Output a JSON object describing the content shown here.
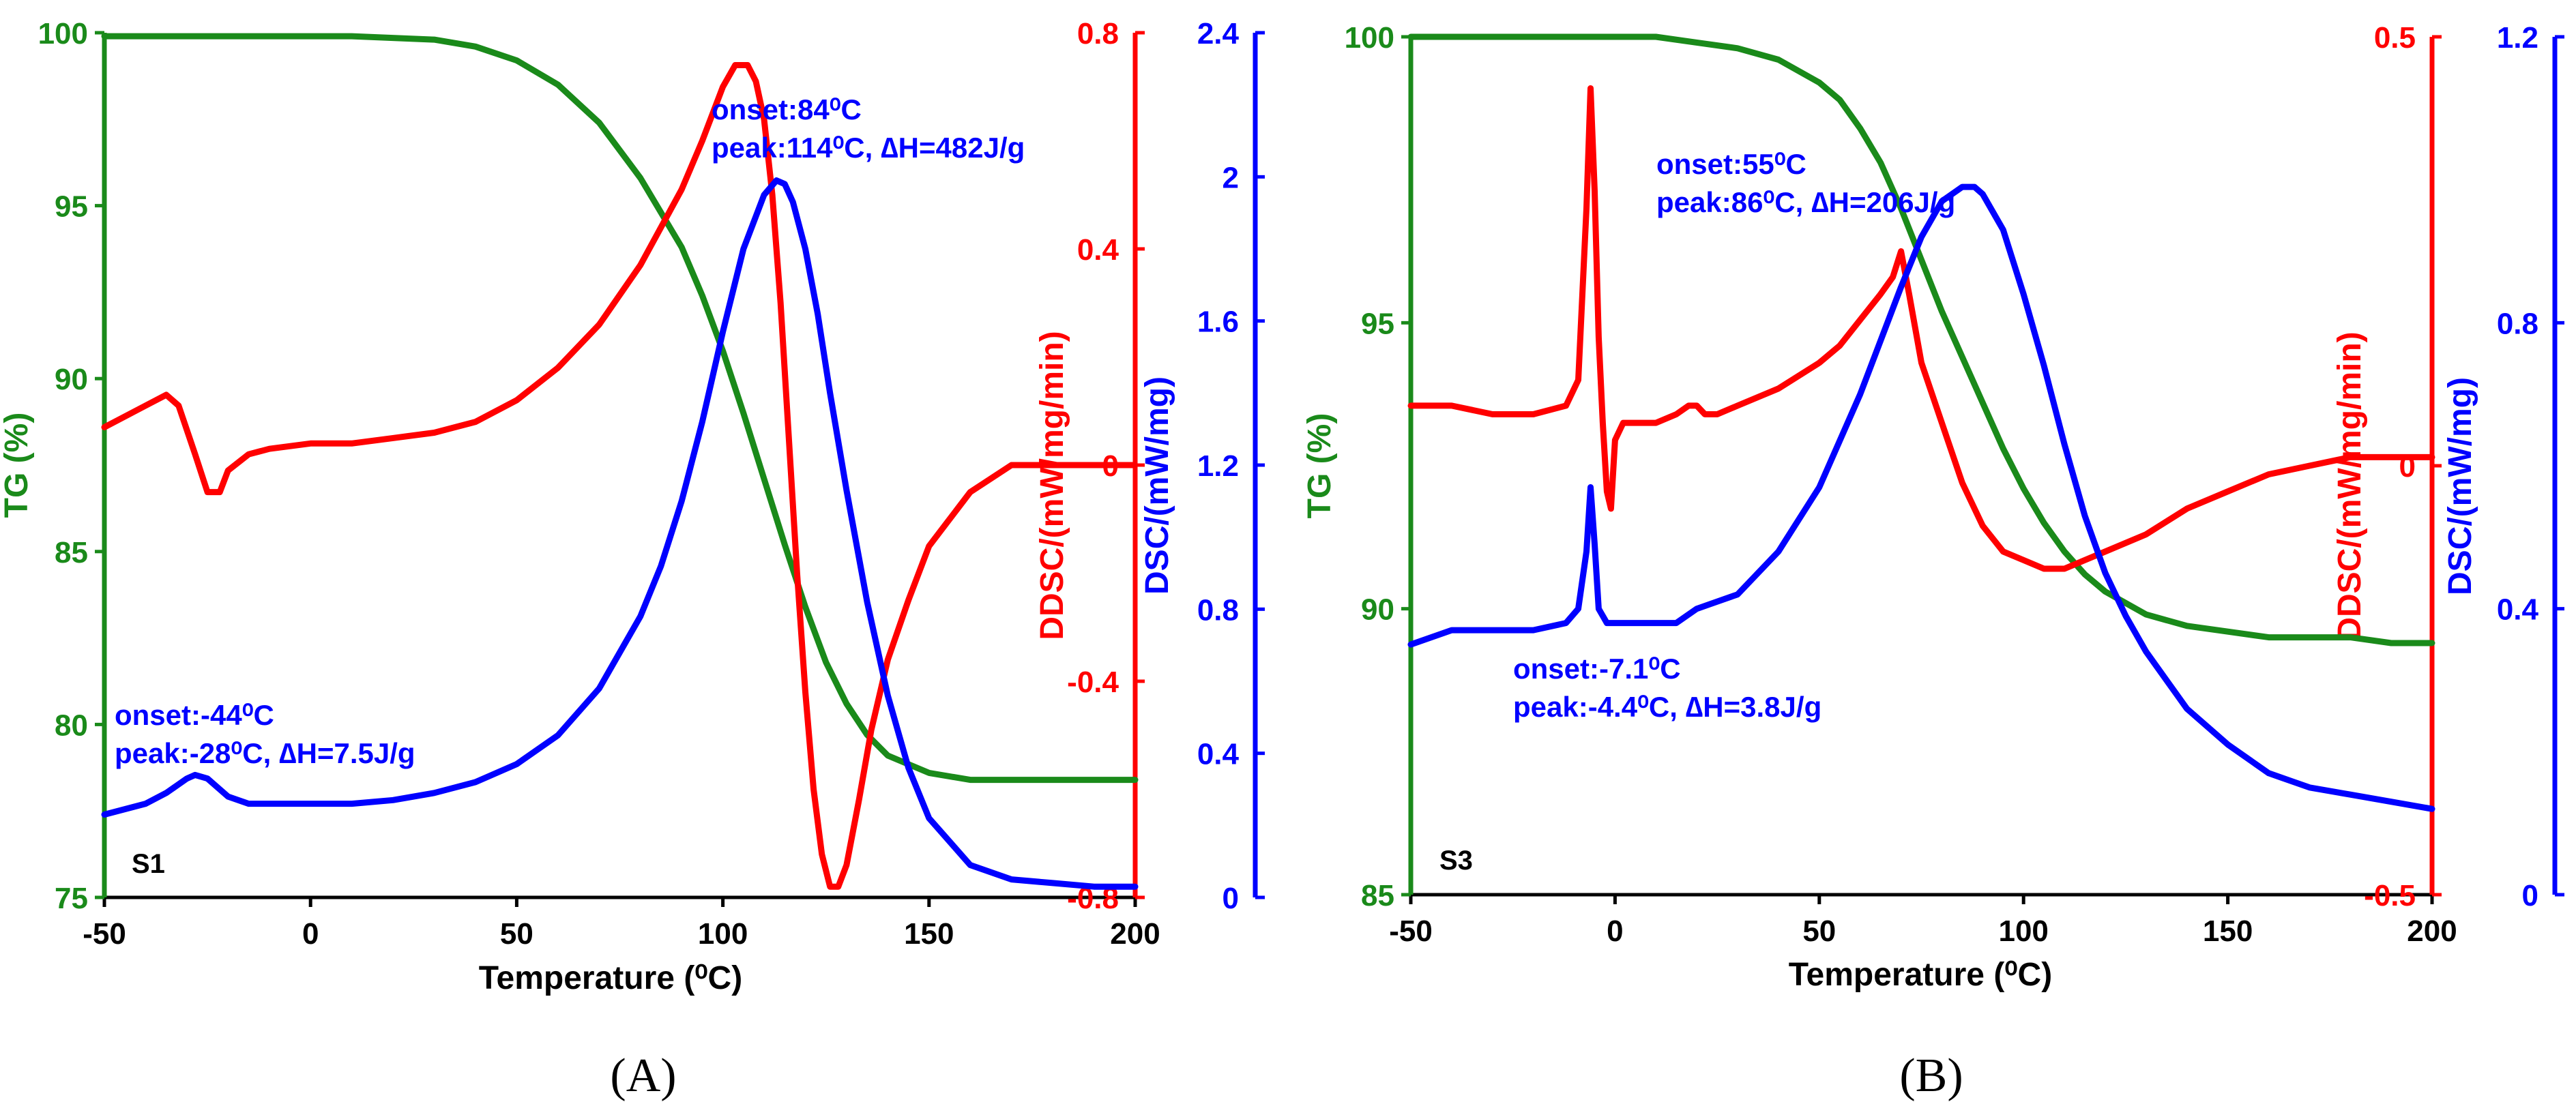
{
  "chart_data": [
    {
      "id": "A",
      "type": "line",
      "panel_label": "(A)",
      "sample_label": "S1",
      "xlabel": "Temperature (⁰C)",
      "xlim": [
        -50,
        200
      ],
      "xticks": [
        "-50",
        "0",
        "50",
        "100",
        "150",
        "200"
      ],
      "axes": [
        {
          "name": "TG (%)",
          "side": "left",
          "color": "#1a8a1a",
          "ylim": [
            75,
            100
          ],
          "ticks": [
            "75",
            "80",
            "85",
            "90",
            "95",
            "100"
          ]
        },
        {
          "name": "DDSC/(mW/mg/min)",
          "side": "right",
          "color": "#ff0000",
          "ylim": [
            -0.8,
            0.8
          ],
          "ticks": [
            "-0.8",
            "-0.4",
            "0",
            "0.4",
            "0.8"
          ]
        },
        {
          "name": "DSC/(mW/mg)",
          "side": "right",
          "color": "#0000ff",
          "ylim": [
            0,
            2.4
          ],
          "ticks": [
            "0",
            "0.4",
            "0.8",
            "1.2",
            "1.6",
            "2",
            "2.4"
          ]
        }
      ],
      "series": [
        {
          "axis": 0,
          "color": "#1a8a1a",
          "x": [
            -50,
            -30,
            -10,
            0,
            10,
            30,
            40,
            50,
            60,
            70,
            80,
            90,
            95,
            100,
            105,
            110,
            115,
            120,
            125,
            130,
            135,
            140,
            150,
            160,
            180,
            200
          ],
          "y": [
            99.9,
            99.9,
            99.9,
            99.9,
            99.9,
            99.8,
            99.6,
            99.2,
            98.5,
            97.4,
            95.8,
            93.8,
            92.4,
            90.8,
            89.0,
            87.1,
            85.2,
            83.4,
            81.8,
            80.6,
            79.7,
            79.1,
            78.6,
            78.4,
            78.4,
            78.4
          ]
        },
        {
          "axis": 1,
          "color": "#ff0000",
          "x": [
            -50,
            -40,
            -35,
            -32,
            -28,
            -25,
            -22,
            -20,
            -15,
            -10,
            0,
            10,
            20,
            30,
            40,
            50,
            60,
            70,
            80,
            90,
            95,
            100,
            103,
            106,
            108,
            110,
            112,
            114,
            116,
            118,
            120,
            122,
            124,
            126,
            128,
            130,
            133,
            136,
            140,
            145,
            150,
            160,
            170,
            180,
            190,
            200
          ],
          "y": [
            0.07,
            0.11,
            0.13,
            0.11,
            0.02,
            -0.05,
            -0.05,
            -0.01,
            0.02,
            0.03,
            0.04,
            0.04,
            0.05,
            0.06,
            0.08,
            0.12,
            0.18,
            0.26,
            0.37,
            0.51,
            0.6,
            0.7,
            0.74,
            0.74,
            0.71,
            0.64,
            0.5,
            0.3,
            0.05,
            -0.2,
            -0.42,
            -0.6,
            -0.72,
            -0.78,
            -0.78,
            -0.74,
            -0.62,
            -0.49,
            -0.36,
            -0.25,
            -0.15,
            -0.05,
            0.0,
            0.0,
            0.0,
            0.0
          ]
        },
        {
          "axis": 2,
          "color": "#0000ff",
          "x": [
            -50,
            -40,
            -35,
            -30,
            -28,
            -25,
            -20,
            -15,
            -10,
            0,
            10,
            20,
            30,
            40,
            50,
            60,
            70,
            80,
            85,
            90,
            95,
            100,
            105,
            110,
            113,
            115,
            117,
            120,
            123,
            126,
            130,
            135,
            140,
            145,
            150,
            160,
            170,
            180,
            190,
            200
          ],
          "y": [
            0.23,
            0.26,
            0.29,
            0.33,
            0.34,
            0.33,
            0.28,
            0.26,
            0.26,
            0.26,
            0.26,
            0.27,
            0.29,
            0.32,
            0.37,
            0.45,
            0.58,
            0.78,
            0.92,
            1.1,
            1.32,
            1.57,
            1.8,
            1.95,
            1.99,
            1.98,
            1.93,
            1.8,
            1.62,
            1.4,
            1.13,
            0.82,
            0.56,
            0.36,
            0.22,
            0.09,
            0.05,
            0.04,
            0.03,
            0.03
          ]
        }
      ],
      "annotations": [
        {
          "lines": [
            "onset:84⁰C",
            "peak:114⁰C, ∆H=482J/g"
          ],
          "color": "#0000ff"
        },
        {
          "lines": [
            "onset:-44⁰C",
            "peak:-28⁰C, ∆H=7.5J/g"
          ],
          "color": "#0000ff"
        }
      ]
    },
    {
      "id": "B",
      "type": "line",
      "panel_label": "(B)",
      "sample_label": "S3",
      "xlabel": "Temperature (⁰C)",
      "xlim": [
        -50,
        200
      ],
      "xticks": [
        "-50",
        "0",
        "50",
        "100",
        "150",
        "200"
      ],
      "axes": [
        {
          "name": "TG (%)",
          "side": "left",
          "color": "#1a8a1a",
          "ylim": [
            85,
            100
          ],
          "ticks": [
            "85",
            "90",
            "95",
            "100"
          ]
        },
        {
          "name": "DDSC/(mW/mg/min)",
          "side": "right",
          "color": "#ff0000",
          "ylim": [
            -0.5,
            0.5
          ],
          "ticks": [
            "-0.5",
            "0",
            "0.5"
          ]
        },
        {
          "name": "DSC/(mW/mg)",
          "side": "right",
          "color": "#0000ff",
          "ylim": [
            0,
            1.2
          ],
          "ticks": [
            "0",
            "0.4",
            "0.8",
            "1.2"
          ]
        }
      ],
      "series": [
        {
          "axis": 0,
          "color": "#1a8a1a",
          "x": [
            -50,
            -30,
            -10,
            0,
            10,
            20,
            30,
            40,
            50,
            55,
            60,
            65,
            70,
            75,
            80,
            85,
            90,
            95,
            100,
            105,
            110,
            115,
            120,
            125,
            130,
            140,
            150,
            160,
            170,
            180,
            190,
            200
          ],
          "y": [
            100,
            100,
            100,
            100,
            100,
            99.9,
            99.8,
            99.6,
            99.2,
            98.9,
            98.4,
            97.8,
            97.0,
            96.1,
            95.2,
            94.4,
            93.6,
            92.8,
            92.1,
            91.5,
            91.0,
            90.6,
            90.3,
            90.1,
            89.9,
            89.7,
            89.6,
            89.5,
            89.5,
            89.5,
            89.4,
            89.4
          ]
        },
        {
          "axis": 1,
          "color": "#ff0000",
          "x": [
            -50,
            -40,
            -30,
            -20,
            -12,
            -9,
            -7,
            -6,
            -5,
            -4,
            -3,
            -2,
            -1,
            0,
            2,
            5,
            10,
            15,
            18,
            20,
            22,
            25,
            30,
            40,
            50,
            55,
            60,
            65,
            68,
            70,
            72,
            75,
            80,
            85,
            90,
            95,
            100,
            105,
            110,
            115,
            120,
            130,
            140,
            150,
            160,
            170,
            180,
            190,
            200
          ],
          "y": [
            0.07,
            0.07,
            0.06,
            0.06,
            0.07,
            0.1,
            0.3,
            0.44,
            0.32,
            0.15,
            0.05,
            -0.03,
            -0.05,
            0.03,
            0.05,
            0.05,
            0.05,
            0.06,
            0.07,
            0.07,
            0.06,
            0.06,
            0.07,
            0.09,
            0.12,
            0.14,
            0.17,
            0.2,
            0.22,
            0.25,
            0.2,
            0.12,
            0.05,
            -0.02,
            -0.07,
            -0.1,
            -0.11,
            -0.12,
            -0.12,
            -0.11,
            -0.1,
            -0.08,
            -0.05,
            -0.03,
            -0.01,
            0.0,
            0.01,
            0.01,
            0.01
          ]
        },
        {
          "axis": 2,
          "color": "#0000ff",
          "x": [
            -50,
            -40,
            -30,
            -20,
            -12,
            -9,
            -7,
            -6,
            -5,
            -4,
            -3,
            -2,
            -1,
            0,
            5,
            10,
            15,
            20,
            30,
            40,
            50,
            60,
            70,
            75,
            80,
            85,
            88,
            90,
            95,
            100,
            105,
            110,
            115,
            120,
            125,
            130,
            140,
            150,
            160,
            170,
            180,
            190,
            200
          ],
          "y": [
            0.35,
            0.37,
            0.37,
            0.37,
            0.38,
            0.4,
            0.48,
            0.57,
            0.49,
            0.4,
            0.39,
            0.38,
            0.38,
            0.38,
            0.38,
            0.38,
            0.38,
            0.4,
            0.42,
            0.48,
            0.57,
            0.7,
            0.85,
            0.92,
            0.97,
            0.99,
            0.99,
            0.98,
            0.93,
            0.84,
            0.74,
            0.63,
            0.53,
            0.45,
            0.39,
            0.34,
            0.26,
            0.21,
            0.17,
            0.15,
            0.14,
            0.13,
            0.12
          ]
        }
      ],
      "annotations": [
        {
          "lines": [
            "onset:55⁰C",
            "peak:86⁰C, ∆H=206J/g"
          ],
          "color": "#0000ff"
        },
        {
          "lines": [
            "onset:-7.1⁰C",
            "peak:-4.4⁰C, ∆H=3.8J/g"
          ],
          "color": "#0000ff"
        }
      ]
    }
  ]
}
